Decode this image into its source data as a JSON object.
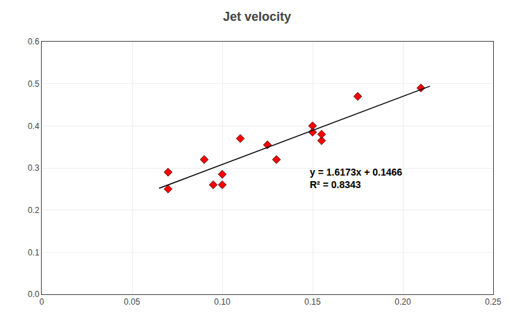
{
  "chart_data": {
    "type": "scatter",
    "title": "Jet velocity",
    "series": [
      {
        "type": "scatter",
        "x": [
          0.07,
          0.07,
          0.09,
          0.095,
          0.1,
          0.1,
          0.11,
          0.125,
          0.13,
          0.15,
          0.15,
          0.155,
          0.155,
          0.175,
          0.21
        ],
        "values": [
          0.25,
          0.29,
          0.32,
          0.26,
          0.285,
          0.26,
          0.37,
          0.355,
          0.32,
          0.4,
          0.385,
          0.365,
          0.38,
          0.47,
          0.49
        ],
        "color": "#FF0000",
        "marker": "diamond"
      },
      {
        "type": "line",
        "x": [
          0.065,
          0.215
        ],
        "values": [
          0.2517245,
          0.4943195
        ],
        "color": "#000000",
        "line_style": "solid"
      }
    ],
    "xlim": [
      0,
      0.25
    ],
    "ylim": [
      0.0,
      0.6
    ],
    "xticks": [
      0,
      0.05,
      {
        "value": 0.1,
        "label": "0.10"
      },
      0.15,
      {
        "value": 0.2,
        "label": "0.20"
      },
      0.25
    ],
    "yticks": [
      {
        "value": 0,
        "label": "0.0"
      },
      0.1,
      0.2,
      0.3,
      0.4,
      0.5,
      0.6
    ],
    "grid": true,
    "annotations": [
      "y = 1.6173x + 0.1466",
      "R² = 0.8343"
    ]
  }
}
